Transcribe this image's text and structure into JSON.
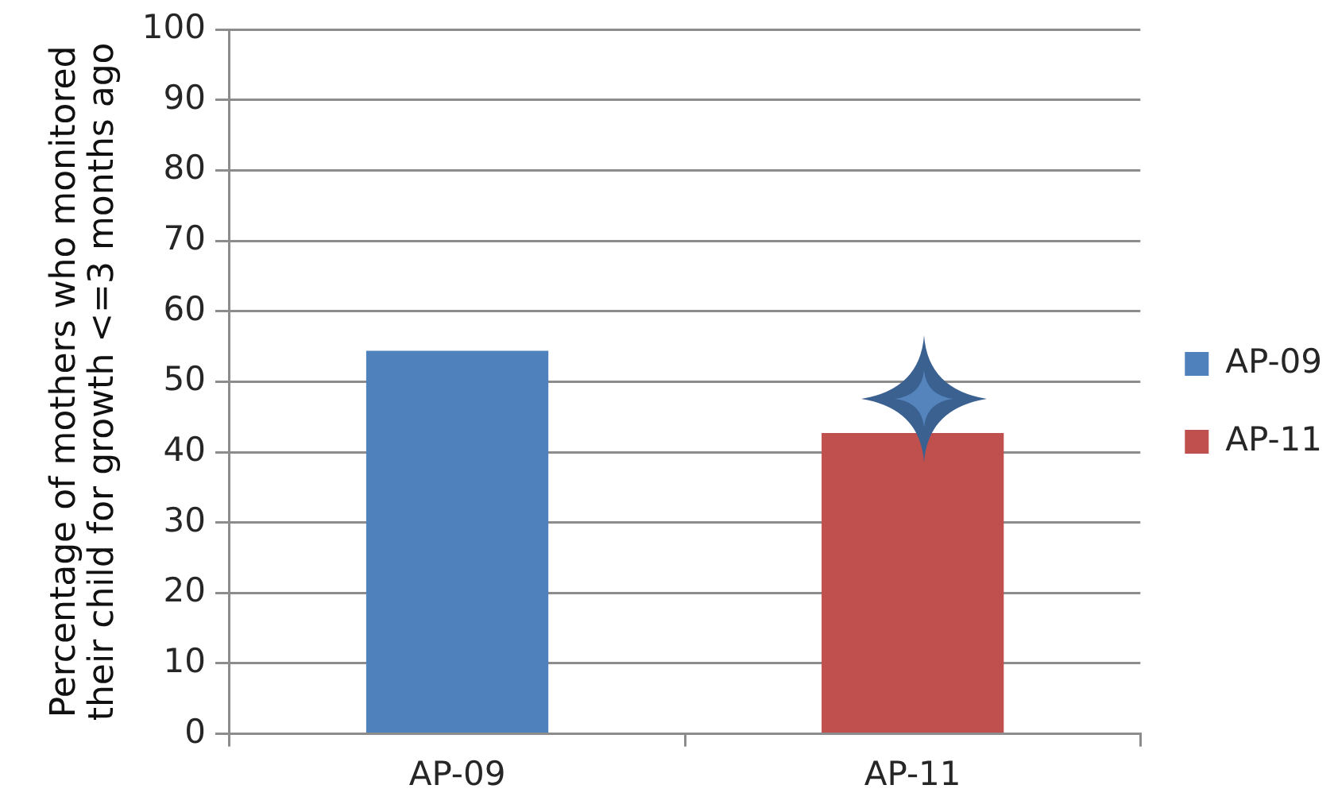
{
  "chart_data": {
    "type": "bar",
    "ylabel": "Percentage of mothers who monitored their child for growth <=3 months ago",
    "categories": [
      "AP-09",
      "AP-11"
    ],
    "series": [
      {
        "name": "AP-09",
        "color": "#4f81bd",
        "values": [
          54.4,
          null
        ]
      },
      {
        "name": "AP-11",
        "color": "#c0504d",
        "values": [
          null,
          42.7
        ]
      }
    ],
    "ylim": [
      0,
      100
    ],
    "yticks": [
      0,
      10,
      20,
      30,
      40,
      50,
      60,
      70,
      80,
      90,
      100
    ],
    "grid": "y",
    "legend": "right"
  }
}
